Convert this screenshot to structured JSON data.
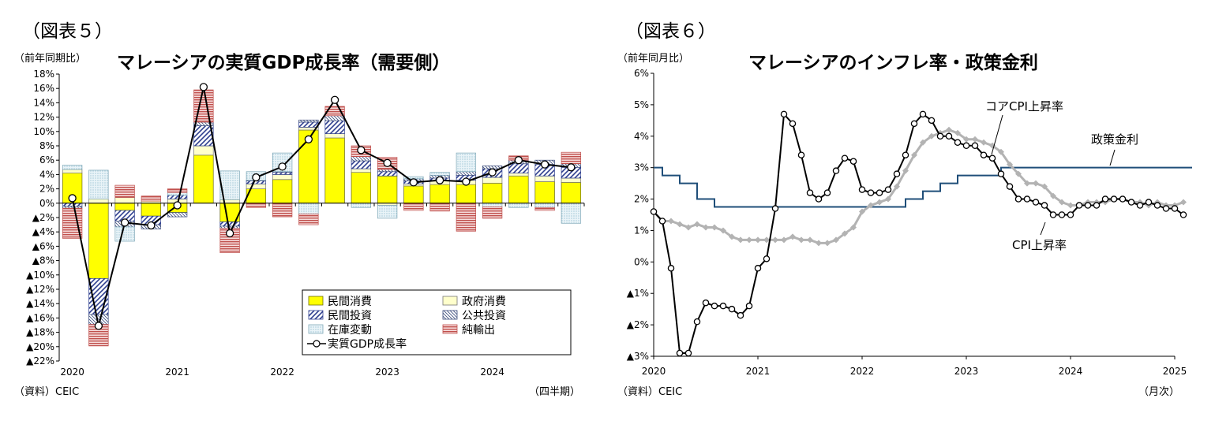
{
  "left": {
    "figure_label": "（図表５）",
    "unit": "（前年同期比）",
    "source": "（資料）CEIC",
    "x_unit": "（四半期）",
    "legend": {
      "pc": "民間消費",
      "gc": "政府消費",
      "pi": "民間投資",
      "pubi": "公共投資",
      "inv": "在庫変動",
      "nx": "純輸出",
      "gdp": "実質GDP成長率"
    }
  },
  "right": {
    "figure_label": "（図表６）",
    "unit": "（前年同月比）",
    "source": "（資料）CEIC",
    "x_unit": "（月次）",
    "annotations": {
      "core": "コアCPI上昇率",
      "policy": "政策金利",
      "cpi": "CPI上昇率"
    }
  },
  "colors": {
    "private_consumption": "#ffff00",
    "government_consumption": "#ffffcc",
    "private_investment": "#2f3f8f",
    "public_investment": "#3b4b7b",
    "inventory": "#b9dbe8",
    "net_exports": "#c0504d",
    "gdp_line": "#000000",
    "cpi_line": "#000000",
    "core_cpi_line": "#b3b3b3",
    "policy_rate_line": "#1f4e79"
  },
  "chart_data": [
    {
      "type": "bar",
      "title": "マレーシアの実質GDP成長率（需要側）",
      "xlabel": "",
      "ylabel": "",
      "ylim": [
        -22,
        18
      ],
      "yticks": [
        18,
        16,
        14,
        12,
        10,
        8,
        6,
        4,
        2,
        0,
        -2,
        -4,
        -6,
        -8,
        -10,
        -12,
        -14,
        -16,
        -18,
        -20,
        -22
      ],
      "ytick_labels": [
        "18%",
        "16%",
        "14%",
        "12%",
        "10%",
        "8%",
        "6%",
        "4%",
        "2%",
        "0%",
        "▲2%",
        "▲4%",
        "▲6%",
        "▲8%",
        "▲10%",
        "▲12%",
        "▲14%",
        "▲16%",
        "▲18%",
        "▲20%",
        "▲22%"
      ],
      "x_labels": [
        {
          "index": 0,
          "label": "2020"
        },
        {
          "index": 4,
          "label": "2021"
        },
        {
          "index": 8,
          "label": "2022"
        },
        {
          "index": 12,
          "label": "2023"
        },
        {
          "index": 16,
          "label": "2024"
        }
      ],
      "categories": [
        "2020Q1",
        "2020Q2",
        "2020Q3",
        "2020Q4",
        "2021Q1",
        "2021Q2",
        "2021Q3",
        "2021Q4",
        "2022Q1",
        "2022Q2",
        "2022Q3",
        "2022Q4",
        "2023Q1",
        "2023Q2",
        "2023Q3",
        "2023Q4",
        "2024Q1",
        "2024Q2",
        "2024Q3",
        "2024Q4"
      ],
      "stacked": true,
      "series": [
        {
          "name": "民間消費",
          "key": "pc",
          "values": [
            4.2,
            -10.5,
            -1.0,
            -1.8,
            -1.3,
            6.7,
            -2.6,
            2.0,
            3.3,
            10.2,
            9.1,
            4.3,
            3.8,
            2.4,
            2.6,
            2.6,
            2.8,
            3.8,
            3.0,
            2.9
          ]
        },
        {
          "name": "政府消費",
          "key": "gc",
          "values": [
            0.5,
            0.6,
            0.8,
            0.3,
            0.6,
            1.3,
            0.5,
            0.7,
            0.7,
            0.4,
            0.6,
            0.5,
            -0.3,
            0.3,
            0.5,
            0.6,
            0.8,
            0.4,
            0.8,
            0.6
          ]
        },
        {
          "name": "民間投資",
          "key": "pi",
          "values": [
            -0.4,
            -5.0,
            -1.5,
            -1.2,
            0.5,
            2.8,
            -0.6,
            0.4,
            0.3,
            0.7,
            1.8,
            1.1,
            0.6,
            0.4,
            0.4,
            0.7,
            1.2,
            1.3,
            1.6,
            1.5
          ]
        },
        {
          "name": "公共投資",
          "key": "pubi",
          "values": [
            -0.3,
            -1.4,
            -0.8,
            -0.6,
            -0.6,
            0.5,
            -0.3,
            0.1,
            0.1,
            0.3,
            0.7,
            0.6,
            0.3,
            0.3,
            0.4,
            0.5,
            0.4,
            0.5,
            0.6,
            0.5
          ]
        },
        {
          "name": "在庫変動",
          "key": "inv",
          "values": [
            0.6,
            4.0,
            -2.0,
            0.0,
            0.4,
            0.0,
            4.0,
            1.2,
            2.6,
            -1.5,
            0.0,
            -0.6,
            -1.8,
            0.3,
            0.4,
            2.6,
            -0.5,
            -0.6,
            -0.6,
            -2.8
          ]
        },
        {
          "name": "純輸出",
          "key": "nx",
          "values": [
            -4.2,
            -3.0,
            1.7,
            0.7,
            0.5,
            4.5,
            -3.4,
            -0.6,
            -1.9,
            -1.5,
            1.3,
            1.5,
            1.7,
            -1.0,
            -1.1,
            -3.9,
            -1.6,
            0.6,
            -0.4,
            1.6
          ]
        }
      ],
      "line": {
        "name": "実質GDP成長率",
        "key": "gdp",
        "values": [
          0.7,
          -17.1,
          -2.7,
          -3.1,
          -0.3,
          16.2,
          -4.2,
          3.6,
          5.1,
          8.9,
          14.4,
          7.4,
          5.6,
          2.9,
          3.2,
          3.0,
          4.3,
          6.0,
          5.4,
          5.0
        ]
      }
    },
    {
      "type": "line",
      "title": "マレーシアのインフレ率・政策金利",
      "xlabel": "",
      "ylabel": "",
      "ylim": [
        -3,
        6
      ],
      "yticks": [
        6,
        5,
        4,
        3,
        2,
        1,
        0,
        -1,
        -2,
        -3
      ],
      "ytick_labels": [
        "6%",
        "5%",
        "4%",
        "3%",
        "2%",
        "1%",
        "0%",
        "▲1%",
        "▲2%",
        "▲3%"
      ],
      "x_start": "2020-01",
      "x_labels": [
        {
          "index": 0,
          "label": "2020"
        },
        {
          "index": 12,
          "label": "2021"
        },
        {
          "index": 24,
          "label": "2022"
        },
        {
          "index": 36,
          "label": "2023"
        },
        {
          "index": 48,
          "label": "2024"
        },
        {
          "index": 60,
          "label": "2025"
        }
      ],
      "series": [
        {
          "name": "CPI上昇率",
          "key": "cpi",
          "marker": "circle",
          "values": [
            1.6,
            1.3,
            -0.2,
            -2.9,
            -2.9,
            -1.9,
            -1.3,
            -1.4,
            -1.4,
            -1.5,
            -1.7,
            -1.4,
            -0.2,
            0.1,
            1.7,
            4.7,
            4.4,
            3.4,
            2.2,
            2.0,
            2.2,
            2.9,
            3.3,
            3.2,
            2.3,
            2.2,
            2.2,
            2.3,
            2.8,
            3.4,
            4.4,
            4.7,
            4.5,
            4.0,
            4.0,
            3.8,
            3.7,
            3.7,
            3.4,
            3.3,
            2.8,
            2.4,
            2.0,
            2.0,
            1.9,
            1.8,
            1.5,
            1.5,
            1.5,
            1.8,
            1.8,
            1.8,
            2.0,
            2.0,
            2.0,
            1.9,
            1.8,
            1.9,
            1.8,
            1.7,
            1.7,
            1.5
          ]
        },
        {
          "name": "コアCPI上昇率",
          "key": "core",
          "marker": "diamond",
          "values": [
            1.6,
            1.3,
            1.3,
            1.2,
            1.1,
            1.2,
            1.1,
            1.1,
            1.0,
            0.8,
            0.7,
            0.7,
            0.7,
            0.7,
            0.7,
            0.7,
            0.8,
            0.7,
            0.7,
            0.6,
            0.6,
            0.7,
            0.9,
            1.1,
            1.6,
            1.8,
            1.9,
            2.0,
            2.4,
            2.9,
            3.4,
            3.8,
            4.0,
            4.1,
            4.2,
            4.1,
            3.9,
            3.9,
            3.8,
            3.7,
            3.5,
            3.1,
            2.8,
            2.5,
            2.5,
            2.4,
            2.1,
            1.9,
            1.8,
            1.8,
            1.9,
            1.9,
            1.9,
            2.0,
            2.0,
            1.9,
            1.9,
            1.8,
            1.9,
            1.8,
            1.8,
            1.9
          ]
        },
        {
          "name": "政策金利",
          "key": "policy",
          "marker": "none",
          "values": [
            3.0,
            2.75,
            2.75,
            2.5,
            2.5,
            2.0,
            2.0,
            1.75,
            1.75,
            1.75,
            1.75,
            1.75,
            1.75,
            1.75,
            1.75,
            1.75,
            1.75,
            1.75,
            1.75,
            1.75,
            1.75,
            1.75,
            1.75,
            1.75,
            1.75,
            1.75,
            1.75,
            1.75,
            1.75,
            2.0,
            2.0,
            2.25,
            2.25,
            2.5,
            2.5,
            2.75,
            2.75,
            2.75,
            2.75,
            2.75,
            3.0,
            3.0,
            3.0,
            3.0,
            3.0,
            3.0,
            3.0,
            3.0,
            3.0,
            3.0,
            3.0,
            3.0,
            3.0,
            3.0,
            3.0,
            3.0,
            3.0,
            3.0,
            3.0,
            3.0,
            3.0,
            3.0
          ]
        }
      ]
    }
  ]
}
